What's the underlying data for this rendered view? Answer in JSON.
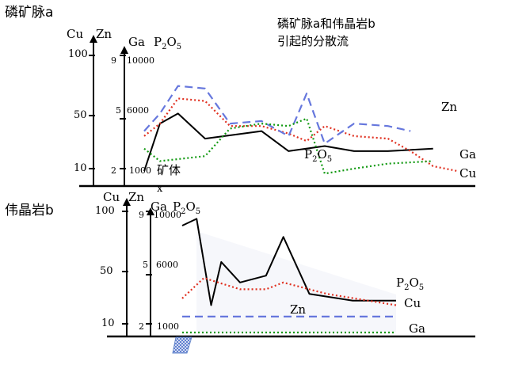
{
  "figure": {
    "title": "磷矿脉a和伟晶岩b\n引起的分散流",
    "panel_a_label": "磷矿脉a",
    "panel_b_label": "伟晶岩b",
    "ore_label": "矿体",
    "ore_label_x": "x"
  },
  "colors": {
    "P2O5": "#000000",
    "Cu": "#e03020",
    "Zn": "#6677dd",
    "Ga": "#119911",
    "fill": "#eef1f8"
  },
  "chart_data": [
    {
      "type": "line",
      "panel": "a",
      "axes": [
        {
          "header": "Cu",
          "ticks": [
            {
              "label": "100",
              "value": 100
            },
            {
              "label": "50",
              "value": 50
            },
            {
              "label": "10",
              "value": 10
            }
          ]
        },
        {
          "header": "Zn",
          "ticks": []
        },
        {
          "header": "Ga",
          "ticks": [
            {
              "label": "9",
              "value": 9
            },
            {
              "label": "5",
              "value": 5
            },
            {
              "label": "2",
              "value": 2
            }
          ]
        },
        {
          "header": "P2O5",
          "ticks": [
            {
              "label": "10000",
              "value": 10000
            },
            {
              "label": "6000",
              "value": 6000
            },
            {
              "label": "1000",
              "value": 1000
            }
          ]
        }
      ],
      "ylim": [
        0,
        110
      ],
      "x": [
        0,
        7,
        15,
        27,
        38,
        52,
        64,
        72,
        80,
        93,
        108,
        118,
        128,
        139
      ],
      "series": [
        {
          "name": "P2O5",
          "style": "solid",
          "points": [
            [
              0,
              10
            ],
            [
              7,
              48
            ],
            [
              15,
              56
            ],
            [
              27,
              36
            ],
            [
              52,
              42
            ],
            [
              64,
              26
            ],
            [
              80,
              30
            ],
            [
              93,
              26
            ],
            [
              108,
              26
            ],
            [
              128,
              28
            ]
          ]
        },
        {
          "name": "Cu",
          "style": "dotted",
          "points": [
            [
              0,
              38
            ],
            [
              7,
              48
            ],
            [
              15,
              68
            ],
            [
              27,
              66
            ],
            [
              38,
              46
            ],
            [
              52,
              46
            ],
            [
              64,
              40
            ],
            [
              72,
              34
            ],
            [
              80,
              46
            ],
            [
              93,
              38
            ],
            [
              108,
              36
            ],
            [
              118,
              26
            ],
            [
              128,
              14
            ],
            [
              139,
              10
            ]
          ]
        },
        {
          "name": "Zn",
          "style": "dashed",
          "points": [
            [
              0,
              42
            ],
            [
              7,
              56
            ],
            [
              15,
              78
            ],
            [
              27,
              76
            ],
            [
              38,
              48
            ],
            [
              52,
              50
            ],
            [
              64,
              38
            ],
            [
              72,
              72
            ],
            [
              80,
              32
            ],
            [
              93,
              48
            ],
            [
              108,
              46
            ],
            [
              118,
              42
            ]
          ]
        },
        {
          "name": "Ga",
          "style": "dotted",
          "points": [
            [
              0,
              28
            ],
            [
              7,
              18
            ],
            [
              27,
              22
            ],
            [
              38,
              44
            ],
            [
              52,
              48
            ],
            [
              64,
              46
            ],
            [
              72,
              52
            ],
            [
              80,
              8
            ],
            [
              93,
              12
            ],
            [
              108,
              16
            ],
            [
              128,
              18
            ]
          ]
        }
      ],
      "series_labels": [
        {
          "text": "Zn",
          "series": "Zn"
        },
        {
          "text": "Ga",
          "series": "Ga"
        },
        {
          "text": "Cu",
          "series": "Cu"
        },
        {
          "text": "P2O5",
          "series": "P2O5"
        }
      ],
      "annotations": [
        {
          "text": "矿体"
        },
        {
          "text": "x"
        }
      ]
    },
    {
      "type": "line",
      "panel": "b",
      "axes": [
        {
          "header": "Cu",
          "ticks": [
            {
              "label": "100",
              "value": 100
            },
            {
              "label": "50",
              "value": 50
            },
            {
              "label": "10",
              "value": 10
            }
          ]
        },
        {
          "header": "Zn",
          "ticks": []
        },
        {
          "header": "Ga",
          "ticks": [
            {
              "label": "9",
              "value": 9
            },
            {
              "label": "5",
              "value": 5
            },
            {
              "label": "2",
              "value": 2
            }
          ]
        },
        {
          "header": "P2O5",
          "ticks": [
            {
              "label": "10000",
              "value": 10000
            },
            {
              "label": "6000",
              "value": 6000
            },
            {
              "label": "1000",
              "value": 1000
            }
          ]
        }
      ],
      "ylim": [
        0,
        110
      ],
      "x": [
        0,
        7,
        15,
        27,
        38,
        52,
        64,
        72,
        80,
        93,
        108,
        118,
        128,
        139
      ],
      "series": [
        {
          "name": "P2O5",
          "style": "solid",
          "points": [
            [
              0,
              94
            ],
            [
              10,
              100
            ],
            [
              20,
              24
            ],
            [
              27,
              62
            ],
            [
              40,
              44
            ],
            [
              58,
              50
            ],
            [
              70,
              84
            ],
            [
              88,
              34
            ],
            [
              118,
              28
            ],
            [
              148,
              28
            ]
          ]
        },
        {
          "name": "Cu",
          "style": "dotted",
          "points": [
            [
              0,
              30
            ],
            [
              15,
              48
            ],
            [
              40,
              38
            ],
            [
              58,
              38
            ],
            [
              70,
              44
            ],
            [
              100,
              34
            ],
            [
              148,
              24
            ]
          ]
        },
        {
          "name": "Zn",
          "style": "dashed",
          "points": [
            [
              0,
              14
            ],
            [
              148,
              14
            ]
          ]
        },
        {
          "name": "Ga",
          "style": "dotted",
          "points": [
            [
              0,
              0
            ],
            [
              148,
              0
            ]
          ]
        }
      ],
      "series_labels": [
        {
          "text": "P2O5",
          "series": "P2O5"
        },
        {
          "text": "Cu",
          "series": "Cu"
        },
        {
          "text": "Zn",
          "series": "Zn"
        },
        {
          "text": "Ga",
          "series": "Ga"
        }
      ]
    }
  ]
}
